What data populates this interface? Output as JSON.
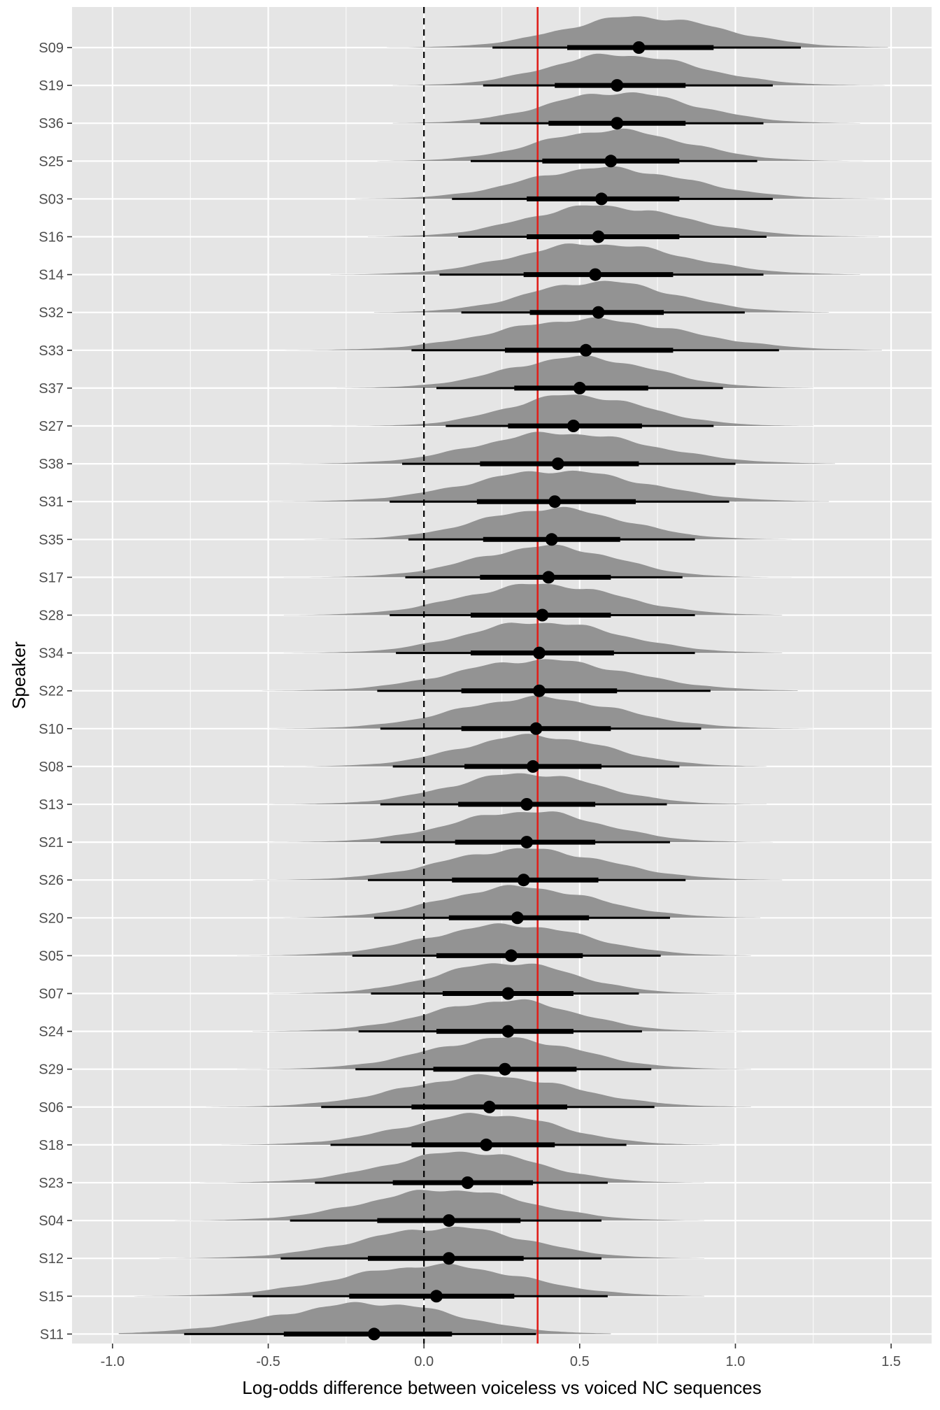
{
  "chart_data": {
    "type": "halfeye",
    "xlabel": "Log-odds difference between voiceless vs voiced NC sequences",
    "ylabel": "Speaker",
    "xlim": [
      -1.13,
      1.63
    ],
    "x_ticks": [
      -1.0,
      -0.5,
      0.0,
      0.5,
      1.0,
      1.5
    ],
    "x_tick_labels": [
      "-1.0",
      "-0.5",
      "0.0",
      "0.5",
      "1.0",
      "1.5"
    ],
    "reference_line_dashed": 0.0,
    "reference_line_red": 0.365,
    "grid": true,
    "colors": {
      "panel": "#e5e5e5",
      "grid_major": "#ffffff",
      "density": "#939393",
      "interval": "#000000",
      "reference_red": "#e0201b",
      "reference_dashed": "#000000"
    },
    "speakers": [
      {
        "label": "S09",
        "median": 0.69,
        "q66": [
          0.46,
          0.93
        ],
        "q95": [
          0.22,
          1.21
        ],
        "range": [
          -0.12,
          1.49
        ]
      },
      {
        "label": "S19",
        "median": 0.62,
        "q66": [
          0.42,
          0.84
        ],
        "q95": [
          0.19,
          1.12
        ],
        "range": [
          -0.1,
          1.48
        ]
      },
      {
        "label": "S36",
        "median": 0.62,
        "q66": [
          0.4,
          0.84
        ],
        "q95": [
          0.18,
          1.09
        ],
        "range": [
          -0.1,
          1.4
        ]
      },
      {
        "label": "S25",
        "median": 0.6,
        "q66": [
          0.38,
          0.82
        ],
        "q95": [
          0.15,
          1.07
        ],
        "range": [
          -0.15,
          1.45
        ]
      },
      {
        "label": "S03",
        "median": 0.57,
        "q66": [
          0.33,
          0.82
        ],
        "q95": [
          0.09,
          1.12
        ],
        "range": [
          -0.22,
          1.48
        ]
      },
      {
        "label": "S16",
        "median": 0.56,
        "q66": [
          0.33,
          0.82
        ],
        "q95": [
          0.11,
          1.1
        ],
        "range": [
          -0.18,
          1.46
        ]
      },
      {
        "label": "S14",
        "median": 0.55,
        "q66": [
          0.32,
          0.8
        ],
        "q95": [
          0.05,
          1.09
        ],
        "range": [
          -0.3,
          1.4
        ]
      },
      {
        "label": "S32",
        "median": 0.56,
        "q66": [
          0.34,
          0.77
        ],
        "q95": [
          0.12,
          1.03
        ],
        "range": [
          -0.16,
          1.3
        ]
      },
      {
        "label": "S33",
        "median": 0.52,
        "q66": [
          0.26,
          0.8
        ],
        "q95": [
          -0.04,
          1.14
        ],
        "range": [
          -0.45,
          1.47
        ]
      },
      {
        "label": "S37",
        "median": 0.5,
        "q66": [
          0.29,
          0.72
        ],
        "q95": [
          0.04,
          0.96
        ],
        "range": [
          -0.28,
          1.25
        ]
      },
      {
        "label": "S27",
        "median": 0.48,
        "q66": [
          0.27,
          0.7
        ],
        "q95": [
          0.07,
          0.93
        ],
        "range": [
          -0.3,
          1.25
        ]
      },
      {
        "label": "S38",
        "median": 0.43,
        "q66": [
          0.18,
          0.69
        ],
        "q95": [
          -0.07,
          1.0
        ],
        "range": [
          -0.5,
          1.32
        ]
      },
      {
        "label": "S31",
        "median": 0.42,
        "q66": [
          0.17,
          0.68
        ],
        "q95": [
          -0.11,
          0.98
        ],
        "range": [
          -0.5,
          1.3
        ]
      },
      {
        "label": "S35",
        "median": 0.41,
        "q66": [
          0.19,
          0.63
        ],
        "q95": [
          -0.05,
          0.87
        ],
        "range": [
          -0.4,
          1.18
        ]
      },
      {
        "label": "S17",
        "median": 0.4,
        "q66": [
          0.18,
          0.6
        ],
        "q95": [
          -0.06,
          0.83
        ],
        "range": [
          -0.45,
          1.18
        ]
      },
      {
        "label": "S28",
        "median": 0.38,
        "q66": [
          0.15,
          0.6
        ],
        "q95": [
          -0.11,
          0.87
        ],
        "range": [
          -0.45,
          1.15
        ]
      },
      {
        "label": "S34",
        "median": 0.37,
        "q66": [
          0.15,
          0.61
        ],
        "q95": [
          -0.09,
          0.87
        ],
        "range": [
          -0.45,
          1.15
        ]
      },
      {
        "label": "S22",
        "median": 0.37,
        "q66": [
          0.12,
          0.62
        ],
        "q95": [
          -0.15,
          0.92
        ],
        "range": [
          -0.52,
          1.2
        ]
      },
      {
        "label": "S10",
        "median": 0.36,
        "q66": [
          0.12,
          0.6
        ],
        "q95": [
          -0.14,
          0.89
        ],
        "range": [
          -0.5,
          1.25
        ]
      },
      {
        "label": "S08",
        "median": 0.35,
        "q66": [
          0.13,
          0.57
        ],
        "q95": [
          -0.1,
          0.82
        ],
        "range": [
          -0.45,
          1.1
        ]
      },
      {
        "label": "S13",
        "median": 0.33,
        "q66": [
          0.11,
          0.55
        ],
        "q95": [
          -0.14,
          0.78
        ],
        "range": [
          -0.5,
          1.1
        ]
      },
      {
        "label": "S21",
        "median": 0.33,
        "q66": [
          0.1,
          0.55
        ],
        "q95": [
          -0.14,
          0.79
        ],
        "range": [
          -0.5,
          1.12
        ]
      },
      {
        "label": "S26",
        "median": 0.32,
        "q66": [
          0.09,
          0.56
        ],
        "q95": [
          -0.18,
          0.84
        ],
        "range": [
          -0.55,
          1.15
        ]
      },
      {
        "label": "S20",
        "median": 0.3,
        "q66": [
          0.08,
          0.53
        ],
        "q95": [
          -0.16,
          0.79
        ],
        "range": [
          -0.5,
          1.08
        ]
      },
      {
        "label": "S05",
        "median": 0.28,
        "q66": [
          0.04,
          0.51
        ],
        "q95": [
          -0.23,
          0.76
        ],
        "range": [
          -0.6,
          1.05
        ]
      },
      {
        "label": "S07",
        "median": 0.27,
        "q66": [
          0.06,
          0.48
        ],
        "q95": [
          -0.17,
          0.69
        ],
        "range": [
          -0.5,
          1.0
        ]
      },
      {
        "label": "S24",
        "median": 0.27,
        "q66": [
          0.04,
          0.48
        ],
        "q95": [
          -0.21,
          0.7
        ],
        "range": [
          -0.55,
          1.02
        ]
      },
      {
        "label": "S29",
        "median": 0.26,
        "q66": [
          0.03,
          0.49
        ],
        "q95": [
          -0.22,
          0.73
        ],
        "range": [
          -0.6,
          1.05
        ]
      },
      {
        "label": "S06",
        "median": 0.21,
        "q66": [
          -0.04,
          0.46
        ],
        "q95": [
          -0.33,
          0.74
        ],
        "range": [
          -0.7,
          1.05
        ]
      },
      {
        "label": "S18",
        "median": 0.2,
        "q66": [
          -0.04,
          0.42
        ],
        "q95": [
          -0.3,
          0.65
        ],
        "range": [
          -0.65,
          0.95
        ]
      },
      {
        "label": "S23",
        "median": 0.14,
        "q66": [
          -0.1,
          0.35
        ],
        "q95": [
          -0.35,
          0.59
        ],
        "range": [
          -0.72,
          0.9
        ]
      },
      {
        "label": "S04",
        "median": 0.08,
        "q66": [
          -0.15,
          0.31
        ],
        "q95": [
          -0.43,
          0.57
        ],
        "range": [
          -0.8,
          0.9
        ]
      },
      {
        "label": "S12",
        "median": 0.08,
        "q66": [
          -0.18,
          0.32
        ],
        "q95": [
          -0.46,
          0.57
        ],
        "range": [
          -0.85,
          0.9
        ]
      },
      {
        "label": "S15",
        "median": 0.04,
        "q66": [
          -0.24,
          0.29
        ],
        "q95": [
          -0.55,
          0.59
        ],
        "range": [
          -0.93,
          0.9
        ]
      },
      {
        "label": "S11",
        "median": -0.16,
        "q66": [
          -0.45,
          0.09
        ],
        "q95": [
          -0.77,
          0.36
        ],
        "range": [
          -0.98,
          0.6
        ]
      }
    ]
  }
}
